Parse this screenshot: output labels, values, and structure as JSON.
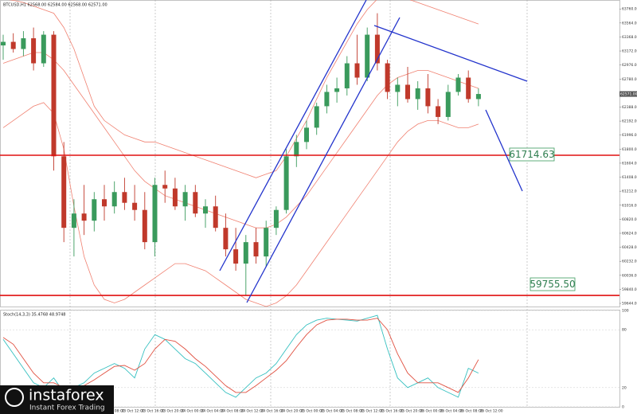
{
  "chart_data": {
    "type": "candlestick",
    "title": "BTCUSD,H1  62568.00 62584.00 62568.00 62571.00",
    "up_color": "#3a9a5c",
    "down_color": "#c0392b",
    "band_color": "#f08070",
    "ylim": [
      59600,
      63885
    ],
    "yticks": [
      {
        "value": 63760,
        "label": "63760.00"
      },
      {
        "value": 63564,
        "label": "63564.00"
      },
      {
        "value": 63368,
        "label": "63368.00"
      },
      {
        "value": 63172,
        "label": "63172.00"
      },
      {
        "value": 62976,
        "label": "62976.00"
      },
      {
        "value": 62780,
        "label": "62780.00"
      },
      {
        "value": 62584,
        "label": "62584.00"
      },
      {
        "value": 62388,
        "label": "62388.00"
      },
      {
        "value": 62192,
        "label": "62192.00"
      },
      {
        "value": 61996,
        "label": "61996.00"
      },
      {
        "value": 61800,
        "label": "61800.00"
      },
      {
        "value": 61604,
        "label": "61604.00"
      },
      {
        "value": 61408,
        "label": "61408.00"
      },
      {
        "value": 61212,
        "label": "61212.00"
      },
      {
        "value": 61016,
        "label": "61016.00"
      },
      {
        "value": 60820,
        "label": "60820.00"
      },
      {
        "value": 60624,
        "label": "60624.00"
      },
      {
        "value": 60428,
        "label": "60428.00"
      },
      {
        "value": 60232,
        "label": "60232.00"
      },
      {
        "value": 60036,
        "label": "60036.00"
      },
      {
        "value": 59840,
        "label": "59840.00"
      },
      {
        "value": 59644,
        "label": "59644.00"
      }
    ],
    "last_price": {
      "value": 62571,
      "label": "62571.00"
    },
    "levels": [
      {
        "value": 61714.63,
        "label": "61714.63"
      },
      {
        "value": 59755.5,
        "label": "59755.50"
      }
    ],
    "candles": {
      "open": [
        63250,
        63300,
        63200,
        63350,
        63000,
        63400,
        61700,
        60700,
        60900,
        60800,
        61100,
        61000,
        61200,
        61050,
        60950,
        60500,
        61300,
        61250,
        61000,
        61200,
        60900,
        61000,
        60700,
        60400,
        60200,
        60500,
        60300,
        60700,
        60950,
        61700,
        61900,
        62100,
        62400,
        62600,
        62650,
        63000,
        62800,
        63400,
        63000,
        62600,
        62700,
        62500,
        62650,
        62400,
        62250,
        62600,
        62800,
        62500
      ],
      "high": [
        63400,
        63420,
        63450,
        63500,
        63450,
        63450,
        61900,
        61100,
        61300,
        61200,
        61300,
        61350,
        61400,
        61300,
        61200,
        61400,
        61500,
        61400,
        61300,
        61300,
        61100,
        61150,
        60900,
        60700,
        60600,
        60700,
        60800,
        61000,
        61800,
        62000,
        62200,
        62450,
        62700,
        62800,
        63100,
        63400,
        63500,
        63700,
        63050,
        62800,
        62950,
        62750,
        62850,
        62500,
        62700,
        62850,
        62900,
        62650
      ],
      "low": [
        63050,
        63150,
        63100,
        62900,
        62950,
        61500,
        60500,
        60300,
        60600,
        60650,
        60800,
        60900,
        60950,
        60800,
        60400,
        60300,
        61050,
        60950,
        60800,
        60850,
        60700,
        60650,
        60300,
        60100,
        59760,
        60200,
        60150,
        60600,
        60900,
        61550,
        61800,
        62000,
        62300,
        62450,
        62550,
        62700,
        62750,
        62900,
        62500,
        62400,
        62450,
        62350,
        62300,
        62150,
        62200,
        62550,
        62450,
        62400
      ],
      "close": [
        63300,
        63200,
        63350,
        63000,
        63400,
        61700,
        60700,
        60900,
        60800,
        61100,
        61000,
        61200,
        61050,
        60950,
        60500,
        61300,
        61250,
        61000,
        61200,
        60900,
        61000,
        60700,
        60400,
        60200,
        60500,
        60300,
        60700,
        60950,
        61700,
        61900,
        62100,
        62400,
        62600,
        62650,
        63000,
        62800,
        63400,
        63000,
        62600,
        62700,
        62500,
        62650,
        62400,
        62250,
        62600,
        62800,
        62500,
        62571
      ]
    },
    "bollinger": {
      "upper": [
        63900,
        63880,
        63850,
        63800,
        63750,
        63700,
        63500,
        63200,
        62800,
        62400,
        62200,
        62100,
        62000,
        61950,
        61900,
        61900,
        61850,
        61800,
        61750,
        61700,
        61650,
        61600,
        61550,
        61500,
        61450,
        61400,
        61450,
        61500,
        61700,
        61950,
        62200,
        62500,
        62800,
        63050,
        63300,
        63550,
        63750,
        63900,
        63950,
        63950,
        63900,
        63850,
        63800,
        63750,
        63700,
        63650,
        63600,
        63550
      ],
      "middle": [
        63000,
        63050,
        63100,
        63150,
        63150,
        63050,
        62900,
        62700,
        62500,
        62300,
        62100,
        61900,
        61700,
        61500,
        61350,
        61250,
        61150,
        61100,
        61050,
        61000,
        60950,
        60900,
        60850,
        60800,
        60750,
        60700,
        60700,
        60750,
        60850,
        61000,
        61150,
        61350,
        61550,
        61750,
        61950,
        62150,
        62350,
        62550,
        62700,
        62800,
        62850,
        62900,
        62900,
        62850,
        62800,
        62750,
        62700,
        62650
      ],
      "lower": [
        62100,
        62200,
        62300,
        62400,
        62450,
        62300,
        61800,
        61000,
        60300,
        59900,
        59700,
        59650,
        59700,
        59800,
        59900,
        60000,
        60100,
        60200,
        60200,
        60150,
        60100,
        60000,
        59900,
        59800,
        59700,
        59650,
        59600,
        59650,
        59750,
        59900,
        60100,
        60300,
        60500,
        60700,
        60900,
        61100,
        61300,
        61500,
        61700,
        61900,
        62050,
        62150,
        62200,
        62200,
        62150,
        62100,
        62100,
        62150
      ]
    },
    "stochastic": {
      "title": "Stoch(14,3,3) 35.4768 48.9748",
      "ylim": [
        0,
        100
      ],
      "yticks": [
        100,
        80,
        20,
        0
      ],
      "series": [
        {
          "color": "#35c0c0",
          "values": [
            70,
            55,
            40,
            25,
            20,
            30,
            15,
            20,
            25,
            35,
            40,
            45,
            40,
            30,
            60,
            75,
            70,
            60,
            50,
            45,
            35,
            25,
            15,
            10,
            20,
            30,
            35,
            45,
            60,
            75,
            85,
            90,
            92,
            91,
            90,
            89,
            92,
            95,
            60,
            30,
            20,
            25,
            30,
            20,
            15,
            10,
            40,
            35
          ]
        },
        {
          "color": "#e05040",
          "values": [
            72,
            65,
            50,
            35,
            25,
            25,
            20,
            18,
            22,
            28,
            35,
            42,
            43,
            38,
            45,
            60,
            70,
            68,
            60,
            50,
            42,
            32,
            22,
            15,
            15,
            22,
            30,
            38,
            48,
            62,
            75,
            85,
            90,
            91,
            91,
            90,
            90,
            92,
            80,
            55,
            35,
            25,
            25,
            25,
            20,
            15,
            30,
            49
          ]
        }
      ]
    },
    "time_labels": [
      "23 Oct 08:00",
      "23 Oct 12:00",
      "23 Oct 16:00",
      "23 Oct 20:00",
      "24 Oct 00:00",
      "24 Oct 04:00",
      "24 Oct 08:00",
      "24 Oct 12:00",
      "24 Oct 16:00",
      "24 Oct 20:00",
      "25 Oct 00:00",
      "25 Oct 04:00",
      "25 Oct 08:00",
      "25 Oct 12:00",
      "25 Oct 16:00",
      "25 Oct 20:00",
      "26 Oct 00:00",
      "26 Oct 04:00",
      "26 Oct 08:00",
      "26 Oct 12:00"
    ]
  },
  "watermark": {
    "brand": "instaforex",
    "tagline": "Instant Forex Trading"
  }
}
